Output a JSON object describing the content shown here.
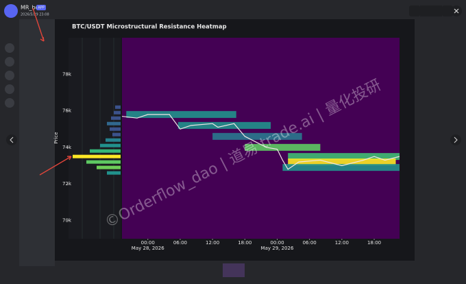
{
  "header": {
    "username": "MR_bot",
    "badge": "APP",
    "timestamp": "2026/5/29 23:08"
  },
  "chart_data": {
    "type": "heatmap",
    "title": "BTC/USDT Microstructural Resistance Heatmap",
    "y_label": "Price",
    "xlim": [
      -4.8,
      46.7
    ],
    "ylim": [
      69000,
      80000
    ],
    "yticks": [
      {
        "value": 70000,
        "label": "70k"
      },
      {
        "value": 72000,
        "label": "72k"
      },
      {
        "value": 74000,
        "label": "74k"
      },
      {
        "value": 76000,
        "label": "76k"
      },
      {
        "value": 78000,
        "label": "78k"
      }
    ],
    "xticks": [
      {
        "value": 0,
        "label": "00:00"
      },
      {
        "value": 6,
        "label": "06:00"
      },
      {
        "value": 12,
        "label": "12:00"
      },
      {
        "value": 18,
        "label": "18:00"
      },
      {
        "value": 24,
        "label": "00:00"
      },
      {
        "value": 30,
        "label": "06:00"
      },
      {
        "value": 36,
        "label": "12:00"
      },
      {
        "value": 42,
        "label": "18:00"
      }
    ],
    "date_labels": [
      {
        "value": 0,
        "label": "May 28, 2026"
      },
      {
        "value": 24,
        "label": "May 29, 2026"
      }
    ],
    "background": "#440154",
    "price_color": "#f0e6e6",
    "x": [
      -4.8,
      -2,
      0,
      4,
      5,
      6,
      8,
      12,
      13,
      16,
      18,
      20,
      22,
      24,
      25,
      26,
      28,
      32,
      36,
      40,
      42,
      44,
      46.7
    ],
    "values": [
      75700,
      75600,
      75800,
      75800,
      75400,
      75000,
      75200,
      75300,
      75100,
      75300,
      74600,
      74300,
      74000,
      73900,
      73300,
      72800,
      73200,
      73300,
      73000,
      73300,
      73500,
      73300,
      73500
    ],
    "zones": {
      "x_start": [
        -4,
        5.6,
        12,
        18,
        26,
        26,
        25
      ],
      "x_end": [
        16.4,
        22.8,
        28.6,
        32,
        46.7,
        46,
        46.7
      ],
      "values": [
        75800,
        75200,
        74600,
        74000,
        73500,
        73200,
        72900
      ],
      "colors": [
        "#21918c",
        "#21918c",
        "#2a788e",
        "#5ec962",
        "#3fbc73",
        "#fde725",
        "#21918c"
      ]
    },
    "profile": {
      "levels": [
        76200,
        75900,
        75600,
        75300,
        75000,
        74700,
        74400,
        74100,
        73800,
        73500,
        73200,
        72900,
        72600
      ],
      "values": [
        8,
        10,
        14,
        20,
        16,
        12,
        22,
        30,
        45,
        70,
        50,
        35,
        20
      ],
      "colors": [
        "#3b528b",
        "#3b528b",
        "#3b528b",
        "#31688e",
        "#3b528b",
        "#3b528b",
        "#26828e",
        "#21918c",
        "#35b779",
        "#fde725",
        "#5ec962",
        "#6ece58",
        "#21918c"
      ]
    },
    "watermark": "©Orderflow_dao | 道易 trade.ai | 量化投研"
  }
}
